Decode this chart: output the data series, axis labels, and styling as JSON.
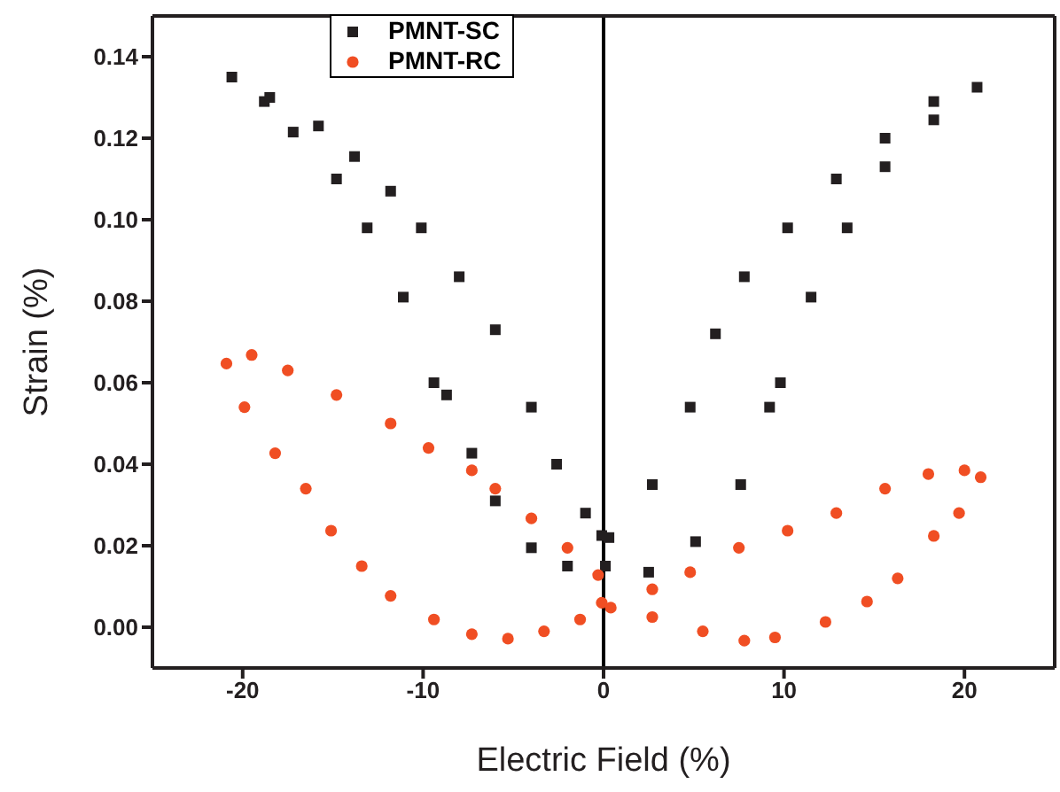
{
  "chart_data": {
    "type": "scatter",
    "xlabel": "Electric Field (%)",
    "ylabel": "Strain (%)",
    "xlim": [
      -25,
      25
    ],
    "xticks": [
      -20,
      -10,
      0,
      10,
      20
    ],
    "ylim": [
      -0.01,
      0.15
    ],
    "yticks": [
      {
        "value": 0,
        "label": "0.00"
      },
      {
        "value": 0.02,
        "label": "0.02"
      },
      {
        "value": 0.04,
        "label": "0.04"
      },
      {
        "value": 0.06,
        "label": "0.06"
      },
      {
        "value": 0.08,
        "label": "0.08"
      },
      {
        "value": 0.1,
        "label": "0.10"
      },
      {
        "value": 0.12,
        "label": "0.12"
      },
      {
        "value": 0.14,
        "label": "0.14"
      }
    ],
    "grid": false,
    "legend": "top left",
    "ref_lines": [
      {
        "axis": "x",
        "value": 0,
        "color": "#000000"
      }
    ],
    "series": [
      {
        "name": "PMNT-SC",
        "color": "#231f20",
        "marker": "square",
        "x": [
          0.3,
          2.7,
          4.8,
          6.2,
          7.8,
          10.2,
          12.9,
          15.6,
          18.3,
          20.7,
          18.3,
          15.6,
          13.5,
          11.5,
          9.8,
          9.2,
          7.6,
          5.1,
          2.5,
          0.1,
          -2.0,
          -4.0,
          -6.0,
          -7.3,
          -8.7,
          -9.4,
          -11.1,
          -13.1,
          -14.8,
          -17.2,
          -18.8,
          -20.6,
          -18.5,
          -15.8,
          -13.8,
          -11.8,
          -10.1,
          -8.0,
          -6.0,
          -4.0,
          -2.6,
          -1.0,
          -0.1
        ],
        "values": [
          0.022,
          0.035,
          0.054,
          0.072,
          0.086,
          0.098,
          0.11,
          0.12,
          0.129,
          0.1325,
          0.1245,
          0.113,
          0.098,
          0.081,
          0.06,
          0.054,
          0.035,
          0.021,
          0.0135,
          0.015,
          0.015,
          0.0195,
          0.031,
          0.0427,
          0.057,
          0.06,
          0.081,
          0.098,
          0.11,
          0.1215,
          0.129,
          0.135,
          0.13,
          0.123,
          0.1155,
          0.107,
          0.098,
          0.086,
          0.073,
          0.054,
          0.04,
          0.028,
          0.0225
        ]
      },
      {
        "name": "PMNT-RC",
        "color": "#f04e23",
        "marker": "circle",
        "x": [
          -0.3,
          -2.0,
          -4.0,
          -6.0,
          -7.3,
          -9.7,
          -11.8,
          -14.8,
          -17.5,
          -19.5,
          -20.9,
          -19.9,
          -18.2,
          -16.5,
          -15.1,
          -13.4,
          -11.8,
          -9.4,
          -7.3,
          -5.3,
          -3.3,
          -1.3,
          0.4,
          2.7,
          4.8,
          7.5,
          10.2,
          12.9,
          15.6,
          18.0,
          20.0,
          20.9,
          19.7,
          18.3,
          16.3,
          14.6,
          12.3,
          9.5,
          7.8,
          5.5,
          2.7,
          -0.1
        ],
        "values": [
          0.0128,
          0.0195,
          0.0267,
          0.034,
          0.0385,
          0.044,
          0.05,
          0.057,
          0.063,
          0.0668,
          0.0647,
          0.054,
          0.0427,
          0.034,
          0.0237,
          0.015,
          0.0077,
          0.0019,
          -0.0017,
          -0.0028,
          -0.001,
          0.0019,
          0.0048,
          0.0093,
          0.0135,
          0.0195,
          0.0237,
          0.028,
          0.034,
          0.0376,
          0.0385,
          0.0368,
          0.028,
          0.0224,
          0.012,
          0.0063,
          0.0013,
          -0.0025,
          -0.0033,
          -0.001,
          0.0025,
          0.006
        ]
      }
    ]
  }
}
